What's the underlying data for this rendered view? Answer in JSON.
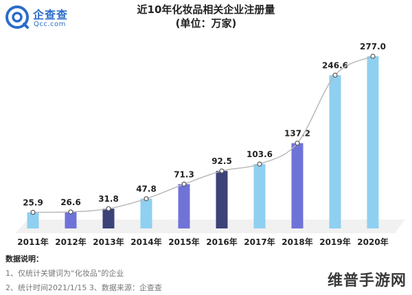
{
  "brand": {
    "name_cn": "企查查",
    "name_en": "Qcc.com",
    "color": "#2a6cc9"
  },
  "chart_data": {
    "type": "bar",
    "title": "近10年化妆品相关企业注册量",
    "subtitle": "(单位：万家)",
    "categories": [
      "2011年",
      "2012年",
      "2013年",
      "2014年",
      "2015年",
      "2016年",
      "2017年",
      "2018年",
      "2019年",
      "2020年"
    ],
    "values": [
      25.9,
      26.6,
      31.8,
      47.8,
      71.3,
      92.5,
      103.6,
      137.2,
      246.6,
      277.0
    ],
    "value_labels": [
      "25.9",
      "26.6",
      "31.8",
      "47.8",
      "71.3",
      "92.5",
      "103.6",
      "137.2",
      "246.6",
      "277.0"
    ],
    "bar_colors": [
      "#8fd0f0",
      "#6f73d8",
      "#3b4378",
      "#8fd0f0",
      "#6f73d8",
      "#3b4378",
      "#8fd0f0",
      "#6f73d8",
      "#8fd0f0",
      "#8fd0f0"
    ],
    "overlay": "smooth trend line through bar tops",
    "ylim": [
      0,
      290
    ],
    "grid": false,
    "xlabel": "",
    "ylabel": ""
  },
  "notes": {
    "title": "数据说明：",
    "line1": "1、仅统计关键词为“化妆品”的企业",
    "line2": "2、统计时间2021/1/15    3、数据来源：企查查"
  },
  "watermark": "维普手游网"
}
